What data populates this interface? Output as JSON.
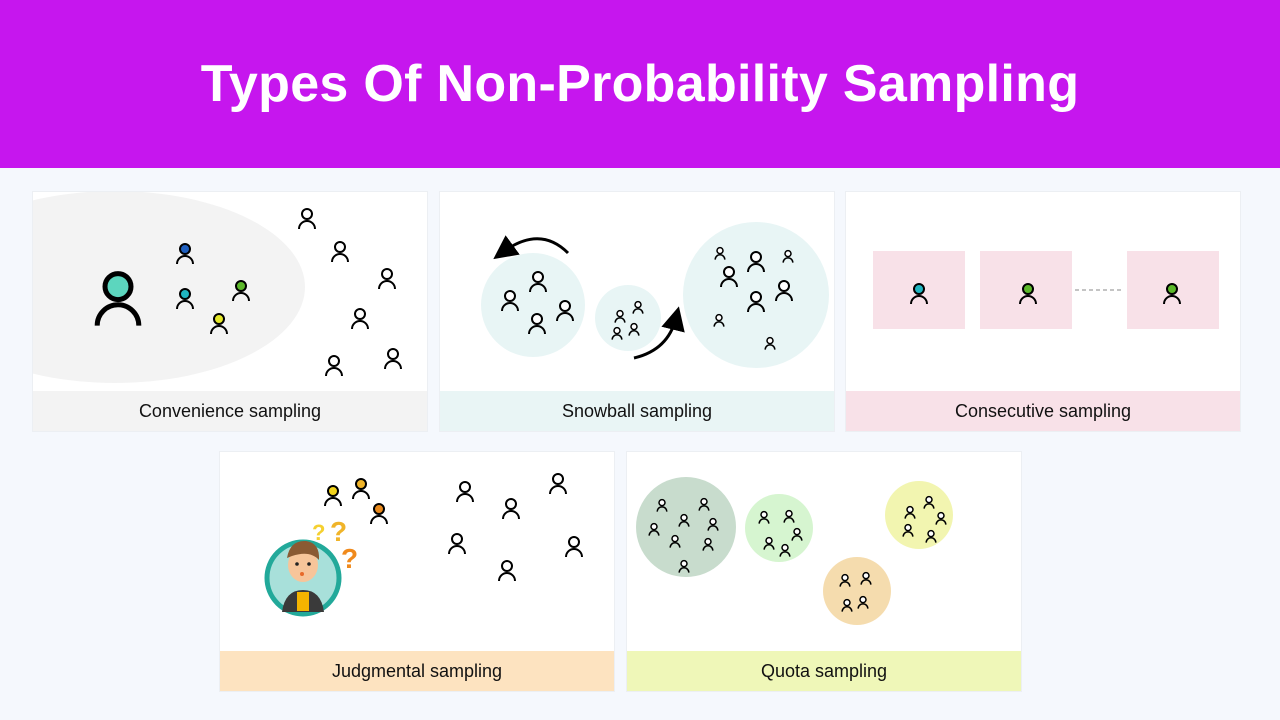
{
  "title": "Types Of Non-Probability Sampling",
  "cards": [
    {
      "label": "Convenience sampling",
      "label_bg": "#f3f3f3"
    },
    {
      "label": "Snowball sampling",
      "label_bg": "#e9f5f5"
    },
    {
      "label": "Consecutive sampling",
      "label_bg": "#f8e1e8"
    },
    {
      "label": "Judgmental sampling",
      "label_bg": "#fde3c0"
    },
    {
      "label": "Quota sampling",
      "label_bg": "#eff7b8"
    }
  ],
  "colors": {
    "banner": "#c616ee",
    "person_teal": "#5cd6be",
    "person_blue": "#1f5fbf",
    "person_cyan": "#20b5c0",
    "person_green": "#5cb82a",
    "person_yellow": "#e5e82a",
    "judge_yellow": "#f1d31c",
    "judge_amber": "#f0b429",
    "judge_orange": "#e8891c"
  },
  "icons": [
    "person-icon",
    "curved-arrow-icon",
    "thinking-boy-avatar",
    "question-mark-icon"
  ],
  "question_marks": [
    "?",
    "?",
    "?"
  ]
}
